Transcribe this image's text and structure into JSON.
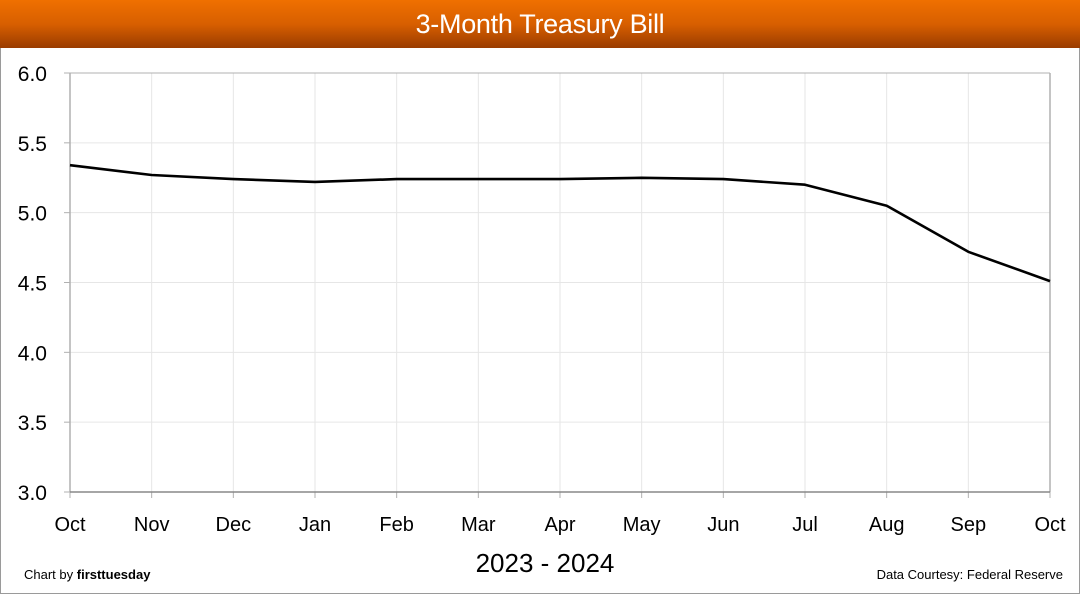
{
  "header": {
    "title": "3-Month Treasury Bill"
  },
  "footer": {
    "credit_prefix": "Chart by ",
    "credit_brand": "firsttuesday",
    "source": "Data Courtesy: Federal Reserve"
  },
  "colors": {
    "title_bar_top": "#f07000",
    "title_bar_bottom": "#9a3c00",
    "line": "#000000",
    "grid": "#e6e6e6",
    "axis": "#b0b0b0"
  },
  "chart_data": {
    "type": "line",
    "title": "3-Month Treasury Bill",
    "xlabel": "2023 - 2024",
    "ylabel": "",
    "categories": [
      "Oct",
      "Nov",
      "Dec",
      "Jan",
      "Feb",
      "Mar",
      "Apr",
      "May",
      "Jun",
      "Jul",
      "Aug",
      "Sep",
      "Oct"
    ],
    "series": [
      {
        "name": "3-Month Treasury Bill",
        "values": [
          5.34,
          5.27,
          5.24,
          5.22,
          5.24,
          5.24,
          5.24,
          5.25,
          5.24,
          5.2,
          5.05,
          4.72,
          4.51
        ]
      }
    ],
    "ylim": [
      3.0,
      6.0
    ],
    "yticks": [
      "3.0",
      "3.5",
      "4.0",
      "4.5",
      "5.0",
      "5.5",
      "6.0"
    ],
    "grid": true,
    "legend": "none"
  }
}
